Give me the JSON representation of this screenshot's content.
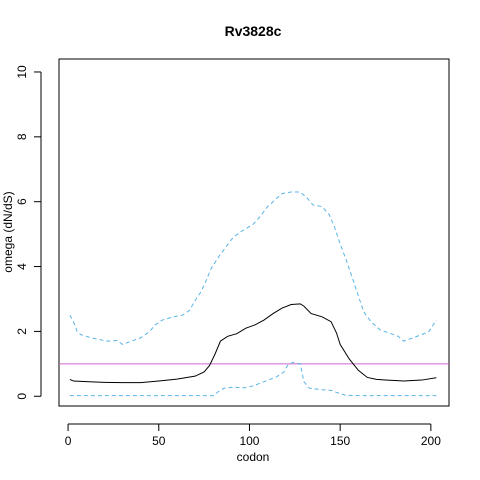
{
  "chart_data": {
    "type": "line",
    "title": "Rv3828c",
    "xlabel": "codon",
    "ylabel": "omega (dN/dS)",
    "xlim": [
      -5,
      210
    ],
    "ylim": [
      -0.3,
      10.4
    ],
    "xticks": [
      0,
      50,
      100,
      150,
      200
    ],
    "yticks": [
      0,
      2,
      4,
      6,
      8,
      10
    ],
    "grid": false,
    "legend": "none",
    "reference_line": {
      "y": 1,
      "color": "#cc66cc"
    },
    "series": [
      {
        "style": "solid",
        "color": "#000000",
        "points": [
          [
            1,
            0.52
          ],
          [
            3,
            0.47
          ],
          [
            10,
            0.45
          ],
          [
            20,
            0.43
          ],
          [
            30,
            0.42
          ],
          [
            40,
            0.42
          ],
          [
            50,
            0.47
          ],
          [
            60,
            0.53
          ],
          [
            70,
            0.62
          ],
          [
            75,
            0.75
          ],
          [
            78,
            0.95
          ],
          [
            81,
            1.3
          ],
          [
            84,
            1.7
          ],
          [
            88,
            1.85
          ],
          [
            93,
            1.93
          ],
          [
            98,
            2.1
          ],
          [
            103,
            2.2
          ],
          [
            108,
            2.35
          ],
          [
            113,
            2.55
          ],
          [
            118,
            2.72
          ],
          [
            123,
            2.83
          ],
          [
            128,
            2.85
          ],
          [
            130,
            2.78
          ],
          [
            134,
            2.55
          ],
          [
            140,
            2.45
          ],
          [
            145,
            2.3
          ],
          [
            148,
            1.95
          ],
          [
            150,
            1.6
          ],
          [
            155,
            1.15
          ],
          [
            160,
            0.8
          ],
          [
            165,
            0.58
          ],
          [
            170,
            0.52
          ],
          [
            175,
            0.5
          ],
          [
            185,
            0.47
          ],
          [
            195,
            0.5
          ],
          [
            203,
            0.57
          ]
        ]
      },
      {
        "style": "dashed",
        "color": "#5ab4e5",
        "points": [
          [
            1,
            2.5
          ],
          [
            3,
            2.3
          ],
          [
            5,
            2.0
          ],
          [
            7,
            1.9
          ],
          [
            10,
            1.85
          ],
          [
            13,
            1.8
          ],
          [
            17,
            1.75
          ],
          [
            22,
            1.7
          ],
          [
            27,
            1.72
          ],
          [
            30,
            1.6
          ],
          [
            35,
            1.7
          ],
          [
            40,
            1.8
          ],
          [
            45,
            2.0
          ],
          [
            48,
            2.2
          ],
          [
            52,
            2.35
          ],
          [
            58,
            2.45
          ],
          [
            63,
            2.5
          ],
          [
            67,
            2.65
          ],
          [
            70,
            2.95
          ],
          [
            73,
            3.2
          ],
          [
            76,
            3.55
          ],
          [
            79,
            3.95
          ],
          [
            83,
            4.3
          ],
          [
            87,
            4.6
          ],
          [
            91,
            4.9
          ],
          [
            96,
            5.1
          ],
          [
            102,
            5.3
          ],
          [
            106,
            5.55
          ],
          [
            110,
            5.85
          ],
          [
            114,
            6.05
          ],
          [
            118,
            6.25
          ],
          [
            123,
            6.3
          ],
          [
            128,
            6.3
          ],
          [
            132,
            6.1
          ],
          [
            135,
            5.9
          ],
          [
            140,
            5.85
          ],
          [
            144,
            5.6
          ],
          [
            147,
            5.2
          ],
          [
            150,
            4.7
          ],
          [
            154,
            4.1
          ],
          [
            157,
            3.6
          ],
          [
            160,
            3.1
          ],
          [
            163,
            2.6
          ],
          [
            167,
            2.3
          ],
          [
            172,
            2.05
          ],
          [
            177,
            1.95
          ],
          [
            182,
            1.85
          ],
          [
            185,
            1.7
          ],
          [
            190,
            1.8
          ],
          [
            195,
            1.9
          ],
          [
            199,
            2.0
          ],
          [
            203,
            2.35
          ]
        ]
      },
      {
        "style": "dashed",
        "color": "#5ab4e5",
        "points": [
          [
            1,
            0.02
          ],
          [
            80,
            0.02
          ],
          [
            83,
            0.15
          ],
          [
            86,
            0.25
          ],
          [
            92,
            0.28
          ],
          [
            97,
            0.26
          ],
          [
            102,
            0.32
          ],
          [
            108,
            0.45
          ],
          [
            115,
            0.6
          ],
          [
            119,
            0.75
          ],
          [
            121,
            0.95
          ],
          [
            124,
            1.05
          ],
          [
            128,
            1.0
          ],
          [
            130,
            0.45
          ],
          [
            133,
            0.25
          ],
          [
            140,
            0.2
          ],
          [
            145,
            0.18
          ],
          [
            149,
            0.1
          ],
          [
            153,
            0.03
          ],
          [
            160,
            0.02
          ],
          [
            203,
            0.02
          ]
        ]
      }
    ]
  }
}
